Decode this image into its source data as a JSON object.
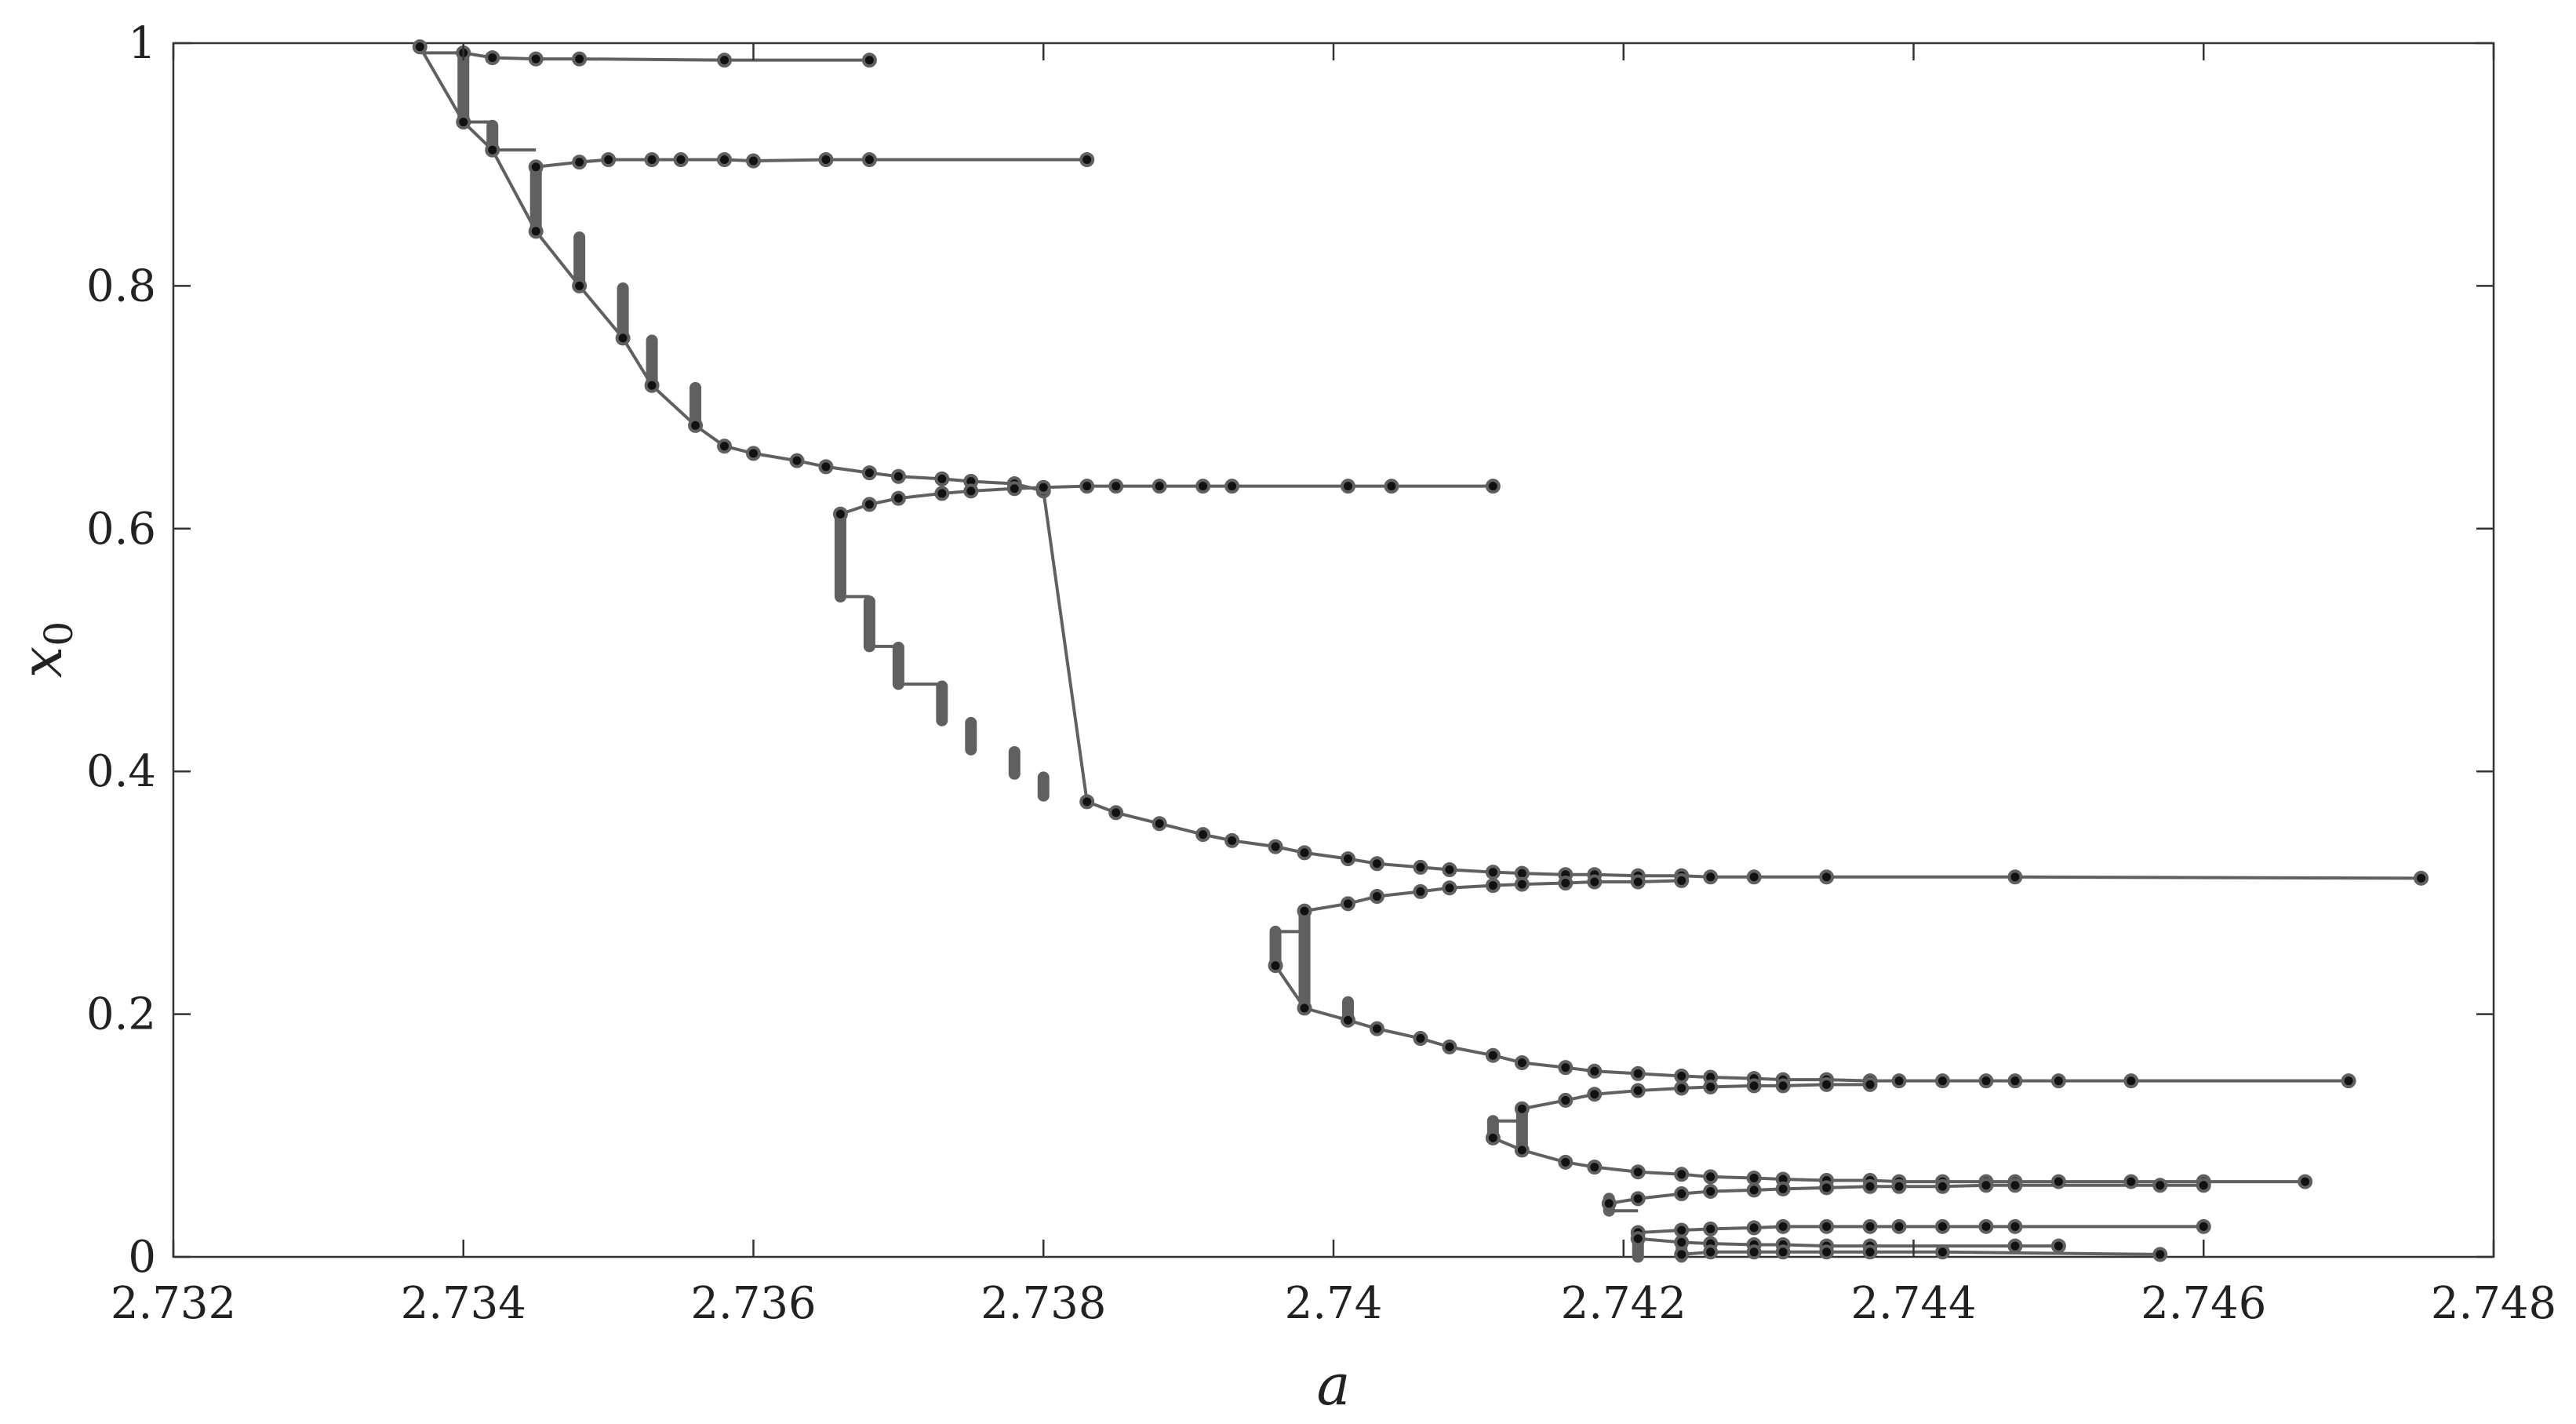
{
  "chart_data": {
    "type": "line",
    "title": "",
    "xlabel": "a",
    "ylabel": "x",
    "ylabel_subscript": "0",
    "xlim": [
      2.732,
      2.748
    ],
    "ylim": [
      0,
      1
    ],
    "xticks": [
      "2.732",
      "2.734",
      "2.736",
      "2.738",
      "2.74",
      "2.742",
      "2.744",
      "2.746",
      "2.748"
    ],
    "xtick_values": [
      2.732,
      2.734,
      2.736,
      2.738,
      2.74,
      2.742,
      2.744,
      2.746,
      2.748
    ],
    "yticks": [
      "0",
      "0.2",
      "0.4",
      "0.6",
      "0.8",
      "1"
    ],
    "ytick_values": [
      0,
      0.2,
      0.4,
      0.6,
      0.8,
      1
    ],
    "grid": false,
    "colors": {
      "line": "#606060",
      "marker_face": "#111111",
      "marker_edge": "#606060",
      "axes": "#333333"
    },
    "branches": [
      {
        "x": [
          2.7337,
          2.734,
          2.7342,
          2.7345,
          2.7348,
          2.7351,
          2.7353,
          2.7356,
          2.7358,
          2.736,
          2.7363,
          2.7365,
          2.7368,
          2.737,
          2.7373,
          2.7375,
          2.7378,
          2.738,
          2.7383,
          2.7385,
          2.7388,
          2.7391,
          2.7393,
          2.7396,
          2.7398,
          2.7401,
          2.7403,
          2.7406,
          2.7408,
          2.7411,
          2.7413,
          2.7416,
          2.7418,
          2.7421,
          2.7424,
          2.7426,
          2.7429,
          2.7434,
          2.7447,
          2.7475
        ],
        "y": [
          0.997,
          0.935,
          0.912,
          0.845,
          0.8,
          0.757,
          0.718,
          0.685,
          0.668,
          0.662,
          0.656,
          0.651,
          0.646,
          0.643,
          0.641,
          0.639,
          0.637,
          0.631,
          0.375,
          0.366,
          0.357,
          0.348,
          0.343,
          0.338,
          0.333,
          0.328,
          0.324,
          0.321,
          0.319,
          0.317,
          0.316,
          0.315,
          0.315,
          0.314,
          0.314,
          0.313,
          0.313,
          0.313,
          0.313,
          0.312
        ]
      },
      {
        "x": [
          2.734,
          2.7342,
          2.7345,
          2.7348,
          2.7358,
          2.7368
        ],
        "y": [
          0.992,
          0.988,
          0.987,
          0.987,
          0.986,
          0.986
        ]
      },
      {
        "x": [
          2.7345,
          2.7348,
          2.735,
          2.7353,
          2.7355,
          2.7358,
          2.736,
          2.7365,
          2.7368,
          2.7383
        ],
        "y": [
          0.898,
          0.902,
          0.904,
          0.904,
          0.904,
          0.904,
          0.903,
          0.904,
          0.904,
          0.904
        ]
      },
      {
        "x": [
          2.7366,
          2.7368,
          2.737,
          2.7373,
          2.7375,
          2.7378,
          2.738,
          2.7383,
          2.7385,
          2.7388,
          2.7391,
          2.7393,
          2.7401,
          2.7404,
          2.7411
        ],
        "y": [
          0.612,
          0.62,
          0.625,
          0.629,
          0.631,
          0.633,
          0.634,
          0.635,
          0.635,
          0.635,
          0.635,
          0.635,
          0.635,
          0.635,
          0.635
        ]
      },
      {
        "x": [
          2.7396,
          2.7398,
          2.7401,
          2.7403,
          2.7406,
          2.7408,
          2.7411,
          2.7413,
          2.7416,
          2.7418,
          2.7421,
          2.7424,
          2.7426,
          2.7429,
          2.7431,
          2.7434,
          2.7437,
          2.7439,
          2.7442,
          2.7445,
          2.7447,
          2.745,
          2.7455,
          2.747
        ],
        "y": [
          0.24,
          0.205,
          0.195,
          0.188,
          0.18,
          0.173,
          0.166,
          0.16,
          0.156,
          0.153,
          0.151,
          0.149,
          0.148,
          0.147,
          0.146,
          0.146,
          0.145,
          0.145,
          0.145,
          0.145,
          0.145,
          0.145,
          0.145,
          0.145
        ]
      },
      {
        "x": [
          2.7398,
          2.7401,
          2.7403,
          2.7406,
          2.7408,
          2.7411,
          2.7413,
          2.7416,
          2.7418,
          2.7421,
          2.7424
        ],
        "y": [
          0.285,
          0.291,
          0.297,
          0.301,
          0.304,
          0.306,
          0.307,
          0.308,
          0.309,
          0.309,
          0.31
        ]
      },
      {
        "x": [
          2.7411,
          2.7413,
          2.7416,
          2.7418,
          2.7421,
          2.7424,
          2.7426,
          2.7429,
          2.7431,
          2.7434,
          2.7437,
          2.7439,
          2.7442,
          2.7445,
          2.7447,
          2.745,
          2.7455,
          2.746,
          2.7467
        ],
        "y": [
          0.098,
          0.088,
          0.078,
          0.074,
          0.07,
          0.068,
          0.066,
          0.065,
          0.064,
          0.063,
          0.063,
          0.062,
          0.062,
          0.062,
          0.062,
          0.062,
          0.062,
          0.062,
          0.062
        ]
      },
      {
        "x": [
          2.7413,
          2.7416,
          2.7418,
          2.7421,
          2.7424,
          2.7426,
          2.7429,
          2.7431,
          2.7434,
          2.7437
        ],
        "y": [
          0.122,
          0.129,
          0.134,
          0.137,
          0.139,
          0.14,
          0.141,
          0.141,
          0.142,
          0.142
        ]
      },
      {
        "x": [
          2.7419,
          2.7421,
          2.7424,
          2.7426,
          2.7429,
          2.7431,
          2.7434,
          2.7437,
          2.7439,
          2.7442,
          2.7445,
          2.7447,
          2.7457,
          2.746
        ],
        "y": [
          0.044,
          0.048,
          0.052,
          0.054,
          0.055,
          0.056,
          0.057,
          0.058,
          0.058,
          0.058,
          0.059,
          0.059,
          0.059,
          0.059
        ]
      },
      {
        "x": [
          2.7421,
          2.7424,
          2.7426,
          2.7429,
          2.7431,
          2.7434,
          2.7437,
          2.7439,
          2.7442,
          2.7445,
          2.7447,
          2.746
        ],
        "y": [
          0.02,
          0.022,
          0.023,
          0.024,
          0.025,
          0.025,
          0.025,
          0.025,
          0.025,
          0.025,
          0.025,
          0.025
        ]
      },
      {
        "x": [
          2.7421,
          2.7424,
          2.7426,
          2.7429,
          2.7431,
          2.7434,
          2.7437,
          2.7447,
          2.745
        ],
        "y": [
          0.015,
          0.012,
          0.011,
          0.01,
          0.01,
          0.009,
          0.009,
          0.009,
          0.009
        ]
      },
      {
        "x": [
          2.7424,
          2.7426,
          2.7429,
          2.7431,
          2.7434,
          2.7437,
          2.7442,
          2.7457
        ],
        "y": [
          0.002,
          0.004,
          0.004,
          0.004,
          0.004,
          0.004,
          0.004,
          0.002
        ]
      }
    ],
    "connectors": [
      {
        "x": [
          2.7337,
          2.734
        ],
        "y": [
          0.992,
          0.992
        ]
      },
      {
        "x": [
          2.734,
          2.7342
        ],
        "y": [
          0.935,
          0.935
        ]
      },
      {
        "x": [
          2.7342,
          2.7345
        ],
        "y": [
          0.912,
          0.912
        ]
      },
      {
        "x": [
          2.7366,
          2.7368
        ],
        "y": [
          0.544,
          0.544
        ]
      },
      {
        "x": [
          2.7368,
          2.737
        ],
        "y": [
          0.503,
          0.503
        ]
      },
      {
        "x": [
          2.737,
          2.7373
        ],
        "y": [
          0.472,
          0.472
        ]
      },
      {
        "x": [
          2.7396,
          2.7398
        ],
        "y": [
          0.268,
          0.268
        ]
      },
      {
        "x": [
          2.7411,
          2.7413
        ],
        "y": [
          0.112,
          0.112
        ]
      },
      {
        "x": [
          2.7419,
          2.7421
        ],
        "y": [
          0.038,
          0.038
        ]
      }
    ],
    "thick_segments": [
      {
        "x": 2.734,
        "y": [
          0.935,
          0.99
        ]
      },
      {
        "x": 2.7342,
        "y": [
          0.912,
          0.932
        ]
      },
      {
        "x": 2.7345,
        "y": [
          0.845,
          0.898
        ]
      },
      {
        "x": 2.7348,
        "y": [
          0.8,
          0.84
        ]
      },
      {
        "x": 2.7351,
        "y": [
          0.757,
          0.798
        ]
      },
      {
        "x": 2.7353,
        "y": [
          0.718,
          0.755
        ]
      },
      {
        "x": 2.7356,
        "y": [
          0.685,
          0.716
        ]
      },
      {
        "x": 2.7366,
        "y": [
          0.544,
          0.612
        ]
      },
      {
        "x": 2.7368,
        "y": [
          0.503,
          0.54
        ]
      },
      {
        "x": 2.737,
        "y": [
          0.472,
          0.502
        ]
      },
      {
        "x": 2.7373,
        "y": [
          0.442,
          0.47
        ]
      },
      {
        "x": 2.7375,
        "y": [
          0.418,
          0.44
        ]
      },
      {
        "x": 2.7378,
        "y": [
          0.398,
          0.416
        ]
      },
      {
        "x": 2.738,
        "y": [
          0.38,
          0.395
        ]
      },
      {
        "x": 2.7396,
        "y": [
          0.24,
          0.268
        ]
      },
      {
        "x": 2.7398,
        "y": [
          0.205,
          0.285
        ]
      },
      {
        "x": 2.7401,
        "y": [
          0.195,
          0.21
        ]
      },
      {
        "x": 2.7411,
        "y": [
          0.098,
          0.112
        ]
      },
      {
        "x": 2.7413,
        "y": [
          0.088,
          0.122
        ]
      },
      {
        "x": 2.7419,
        "y": [
          0.038,
          0.048
        ]
      },
      {
        "x": 2.7421,
        "y": [
          0.0,
          0.02
        ]
      },
      {
        "x": 2.7424,
        "y": [
          0.0,
          0.01
        ]
      }
    ]
  }
}
